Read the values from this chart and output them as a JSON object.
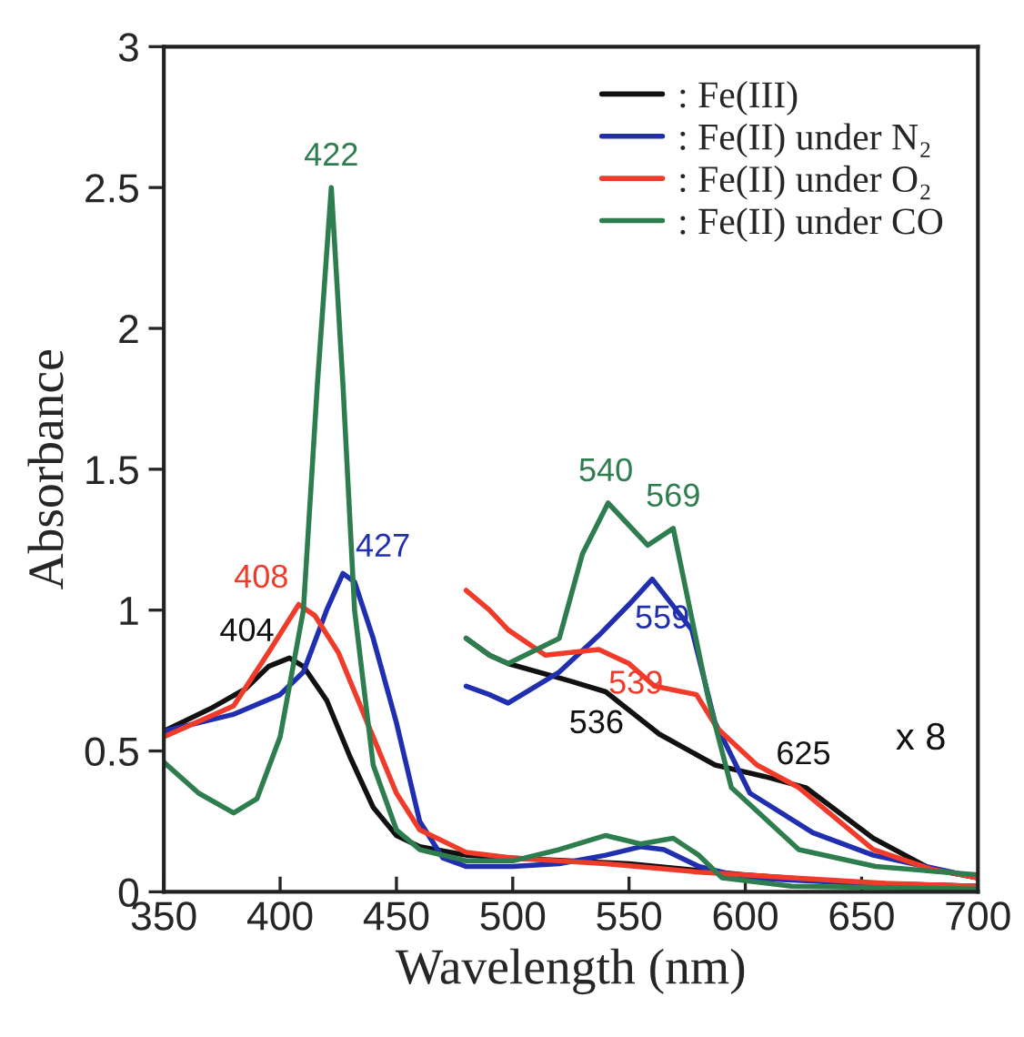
{
  "chart_data": {
    "type": "line",
    "xlabel": "Wavelength (nm)",
    "ylabel": "Absorbance",
    "xlim": [
      350,
      700
    ],
    "xticks": [
      350,
      400,
      450,
      500,
      550,
      600,
      650,
      700
    ],
    "ylim": [
      0,
      3
    ],
    "yticks": [
      0,
      0.5,
      1,
      1.5,
      2,
      2.5,
      3
    ],
    "grid": false,
    "legend": "top right",
    "marker": "none",
    "line_style": "solid",
    "series": [
      {
        "name": ": Fe(III)",
        "color": "#111111",
        "x": [
          350,
          370,
          385,
          395,
          404,
          410,
          420,
          430,
          440,
          450,
          460,
          480,
          500,
          550,
          600,
          650,
          700
        ],
        "values": [
          0.57,
          0.65,
          0.72,
          0.8,
          0.83,
          0.8,
          0.68,
          0.48,
          0.3,
          0.2,
          0.16,
          0.13,
          0.12,
          0.1,
          0.06,
          0.03,
          0.02
        ]
      },
      {
        "name": ": Fe(II) under N₂",
        "color": "#1f2fb0",
        "x": [
          350,
          380,
          400,
          410,
          420,
          427,
          432,
          440,
          450,
          460,
          470,
          480,
          500,
          520,
          540,
          555,
          565,
          580,
          600,
          650,
          700
        ],
        "values": [
          0.57,
          0.63,
          0.7,
          0.78,
          1.0,
          1.13,
          1.1,
          0.9,
          0.6,
          0.25,
          0.12,
          0.09,
          0.09,
          0.1,
          0.13,
          0.16,
          0.15,
          0.09,
          0.05,
          0.03,
          0.02
        ]
      },
      {
        "name": ": Fe(II) under O₂",
        "color": "#f03a2a",
        "x": [
          350,
          380,
          395,
          408,
          415,
          425,
          440,
          450,
          460,
          480,
          500,
          540,
          580,
          620,
          660,
          700
        ],
        "values": [
          0.55,
          0.66,
          0.85,
          1.02,
          0.98,
          0.85,
          0.55,
          0.35,
          0.22,
          0.14,
          0.12,
          0.1,
          0.07,
          0.05,
          0.03,
          0.02
        ]
      },
      {
        "name": ": Fe(II) under CO",
        "color": "#2e7d4f",
        "x": [
          350,
          365,
          380,
          390,
          400,
          410,
          416,
          422,
          427,
          432,
          440,
          450,
          460,
          480,
          500,
          520,
          540,
          555,
          569,
          580,
          590,
          620,
          700
        ],
        "values": [
          0.46,
          0.35,
          0.28,
          0.33,
          0.55,
          1.0,
          1.8,
          2.5,
          1.8,
          1.0,
          0.45,
          0.22,
          0.15,
          0.11,
          0.11,
          0.15,
          0.2,
          0.17,
          0.19,
          0.13,
          0.05,
          0.02,
          0.01
        ]
      },
      {
        "color": "#111111",
        "x": [
          480,
          490,
          498,
          524,
          540,
          563,
          587,
          608,
          626,
          655,
          680,
          700
        ],
        "values": [
          0.9,
          0.84,
          0.81,
          0.75,
          0.71,
          0.56,
          0.45,
          0.41,
          0.37,
          0.19,
          0.08,
          0.05
        ]
      },
      {
        "color": "#1f2fb0",
        "x": [
          480,
          490,
          498,
          520,
          537,
          550,
          560,
          577,
          587,
          602,
          629,
          655,
          700
        ],
        "values": [
          0.73,
          0.7,
          0.67,
          0.78,
          0.91,
          1.02,
          1.11,
          0.93,
          0.6,
          0.35,
          0.21,
          0.13,
          0.05
        ]
      },
      {
        "color": "#f03a2a",
        "x": [
          480,
          490,
          498,
          514,
          537,
          550,
          561,
          579,
          588,
          605,
          623,
          655,
          680,
          700
        ],
        "values": [
          1.07,
          1.0,
          0.93,
          0.84,
          0.86,
          0.81,
          0.73,
          0.7,
          0.58,
          0.45,
          0.37,
          0.15,
          0.08,
          0.05
        ]
      },
      {
        "color": "#2e7d4f",
        "x": [
          480,
          490,
          498,
          520,
          530,
          541,
          558,
          569,
          584,
          594,
          623,
          656,
          700
        ],
        "values": [
          0.9,
          0.84,
          0.81,
          0.9,
          1.2,
          1.38,
          1.23,
          1.29,
          0.69,
          0.37,
          0.15,
          0.09,
          0.06
        ]
      }
    ],
    "annotations": [
      {
        "text": "404",
        "x": 404,
        "y": 0.83
      },
      {
        "text": "408",
        "x": 408,
        "y": 1.02
      },
      {
        "text": "422",
        "x": 422,
        "y": 2.5
      },
      {
        "text": "427",
        "x": 427,
        "y": 1.13
      },
      {
        "text": "536",
        "x": 536,
        "y": 0.72
      },
      {
        "text": "539",
        "x": 539,
        "y": 0.86
      },
      {
        "text": "540",
        "x": 540,
        "y": 1.38
      },
      {
        "text": "559",
        "x": 559,
        "y": 1.11
      },
      {
        "text": "569",
        "x": 569,
        "y": 1.29
      },
      {
        "text": "625",
        "x": 625,
        "y": 0.375
      },
      "x 8"
    ]
  }
}
